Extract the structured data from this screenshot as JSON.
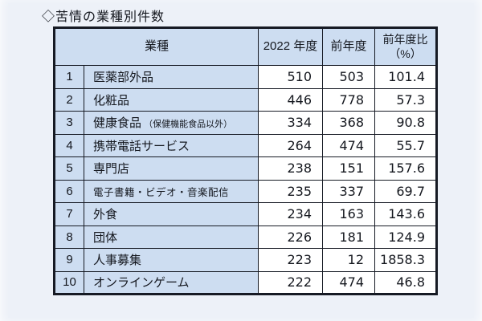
{
  "title": "◇苦情の業種別件数",
  "table": {
    "headers": {
      "industry": "業種",
      "fy2022": "2022 年度",
      "prev_year": "前年度",
      "yoy_line1": "前年度比",
      "yoy_line2": "（%）"
    },
    "rows": [
      {
        "rank": "1",
        "industry": "医薬部外品",
        "note": "",
        "small": false,
        "fy2022": "510",
        "prev": "503",
        "ratio": "101.4"
      },
      {
        "rank": "2",
        "industry": "化粧品",
        "note": "",
        "small": false,
        "fy2022": "446",
        "prev": "778",
        "ratio": "57.3"
      },
      {
        "rank": "3",
        "industry": "健康食品",
        "note": "（保健機能食品以外）",
        "small": false,
        "fy2022": "334",
        "prev": "368",
        "ratio": "90.8"
      },
      {
        "rank": "4",
        "industry": "携帯電話サービス",
        "note": "",
        "small": false,
        "fy2022": "264",
        "prev": "474",
        "ratio": "55.7"
      },
      {
        "rank": "5",
        "industry": "専門店",
        "note": "",
        "small": false,
        "fy2022": "238",
        "prev": "151",
        "ratio": "157.6"
      },
      {
        "rank": "6",
        "industry": "電子書籍・ビデオ・音楽配信",
        "note": "",
        "small": true,
        "fy2022": "235",
        "prev": "337",
        "ratio": "69.7"
      },
      {
        "rank": "7",
        "industry": "外食",
        "note": "",
        "small": false,
        "fy2022": "234",
        "prev": "163",
        "ratio": "143.6"
      },
      {
        "rank": "8",
        "industry": "団体",
        "note": "",
        "small": false,
        "fy2022": "226",
        "prev": "181",
        "ratio": "124.9"
      },
      {
        "rank": "9",
        "industry": "人事募集",
        "note": "",
        "small": false,
        "fy2022": "223",
        "prev": "12",
        "ratio": "1858.3"
      },
      {
        "rank": "10",
        "industry": "オンラインゲーム",
        "note": "",
        "small": false,
        "fy2022": "222",
        "prev": "474",
        "ratio": "46.8"
      }
    ]
  },
  "colors": {
    "cell_blue": "#cdddf1",
    "cell_white": "#ffffff",
    "border": "#161a24",
    "page_bg": "#edf1f8",
    "text": "#14171e"
  },
  "chart_data": {
    "type": "table",
    "title": "◇苦情の業種別件数",
    "columns": [
      "業種",
      "2022 年度",
      "前年度",
      "前年度比（%）"
    ],
    "rows": [
      {
        "rank": 1,
        "industry": "医薬部外品",
        "fy2022": 510,
        "prev_year": 503,
        "yoy_pct": 101.4
      },
      {
        "rank": 2,
        "industry": "化粧品",
        "fy2022": 446,
        "prev_year": 778,
        "yoy_pct": 57.3
      },
      {
        "rank": 3,
        "industry": "健康食品（保健機能食品以外）",
        "fy2022": 334,
        "prev_year": 368,
        "yoy_pct": 90.8
      },
      {
        "rank": 4,
        "industry": "携帯電話サービス",
        "fy2022": 264,
        "prev_year": 474,
        "yoy_pct": 55.7
      },
      {
        "rank": 5,
        "industry": "専門店",
        "fy2022": 238,
        "prev_year": 151,
        "yoy_pct": 157.6
      },
      {
        "rank": 6,
        "industry": "電子書籍・ビデオ・音楽配信",
        "fy2022": 235,
        "prev_year": 337,
        "yoy_pct": 69.7
      },
      {
        "rank": 7,
        "industry": "外食",
        "fy2022": 234,
        "prev_year": 163,
        "yoy_pct": 143.6
      },
      {
        "rank": 8,
        "industry": "団体",
        "fy2022": 226,
        "prev_year": 181,
        "yoy_pct": 124.9
      },
      {
        "rank": 9,
        "industry": "人事募集",
        "fy2022": 223,
        "prev_year": 12,
        "yoy_pct": 1858.3
      },
      {
        "rank": 10,
        "industry": "オンラインゲーム",
        "fy2022": 222,
        "prev_year": 474,
        "yoy_pct": 46.8
      }
    ]
  }
}
